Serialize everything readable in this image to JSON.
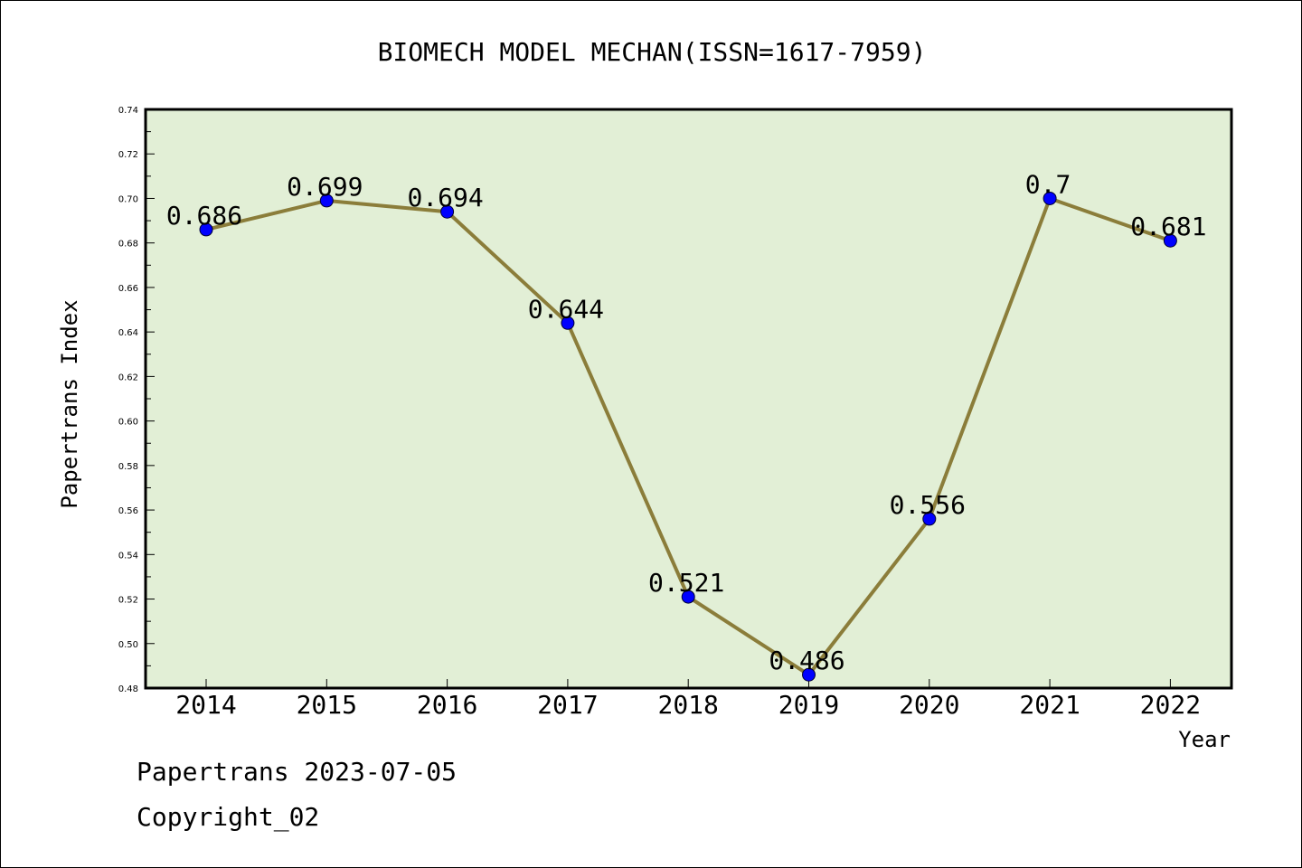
{
  "chart_data": {
    "type": "line",
    "title": "BIOMECH MODEL MECHAN(ISSN=1617-7959)",
    "xlabel": "Year",
    "ylabel": "Papertrans Index",
    "x": [
      "2014",
      "2015",
      "2016",
      "2017",
      "2018",
      "2019",
      "2020",
      "2021",
      "2022"
    ],
    "series": [
      {
        "values": [
          0.686,
          0.699,
          0.694,
          0.644,
          0.521,
          0.486,
          0.556,
          0.7,
          0.681
        ],
        "labels": [
          "0.686",
          "0.699",
          "0.694",
          "0.644",
          "0.521",
          "0.486",
          "0.556",
          "0.7",
          "0.681"
        ],
        "line_color": "#8b7d3a",
        "marker_color": "#0000ff"
      }
    ],
    "ylim": [
      0.48,
      0.74
    ],
    "yticks": [
      "0.48",
      "0.50",
      "0.52",
      "0.54",
      "0.56",
      "0.58",
      "0.60",
      "0.62",
      "0.64",
      "0.66",
      "0.68",
      "0.70",
      "0.72",
      "0.74"
    ],
    "grid": false,
    "plot_background": "#e2efd6"
  },
  "footer": {
    "line1": "Papertrans 2023-07-05",
    "line2": "Copyright_02"
  }
}
